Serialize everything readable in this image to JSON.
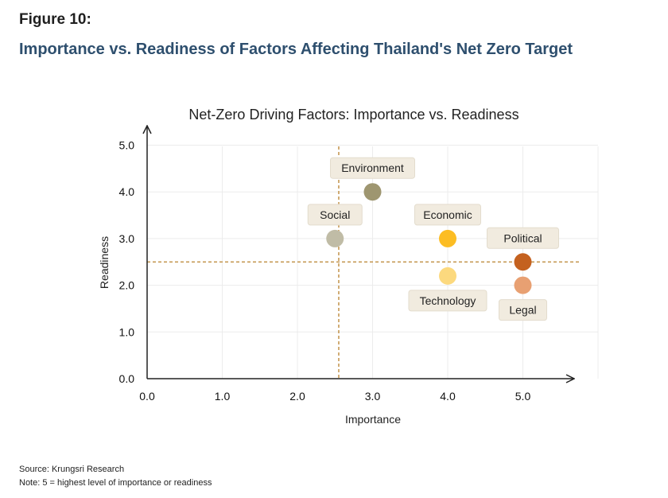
{
  "figure_label": "Figure 10:",
  "figure_title": "Importance vs. Readiness of Factors Affecting Thailand's Net Zero Target",
  "footer": {
    "source": "Source: Krungsri Research",
    "note": "Note: 5 = highest level of importance or readiness"
  },
  "chart_data": {
    "type": "scatter",
    "title": "Net-Zero Driving Factors: Importance vs. Readiness",
    "xlabel": "Importance",
    "ylabel": "Readiness",
    "xlim": [
      0,
      5.5
    ],
    "ylim": [
      0,
      5
    ],
    "x_ticks": [
      "0.0",
      "1.0",
      "2.0",
      "3.0",
      "4.0",
      "5.0"
    ],
    "y_ticks": [
      "0.0",
      "1.0",
      "2.0",
      "3.0",
      "4.0",
      "5.0"
    ],
    "grid": true,
    "reference_lines": {
      "x": 2.55,
      "y": 2.5
    },
    "points": [
      {
        "name": "Environment",
        "x": 3.0,
        "y": 4.0,
        "color": "#9e9670",
        "label_pos": "above"
      },
      {
        "name": "Social",
        "x": 2.5,
        "y": 3.0,
        "color": "#c0bca6",
        "label_pos": "above"
      },
      {
        "name": "Economic",
        "x": 4.0,
        "y": 3.0,
        "color": "#fcbd23",
        "label_pos": "above"
      },
      {
        "name": "Political",
        "x": 5.0,
        "y": 2.5,
        "color": "#c4611f",
        "label_pos": "above"
      },
      {
        "name": "Technology",
        "x": 4.0,
        "y": 2.2,
        "color": "#fcd97e",
        "label_pos": "below"
      },
      {
        "name": "Legal",
        "x": 5.0,
        "y": 2.0,
        "color": "#e8a072",
        "label_pos": "below"
      }
    ]
  }
}
